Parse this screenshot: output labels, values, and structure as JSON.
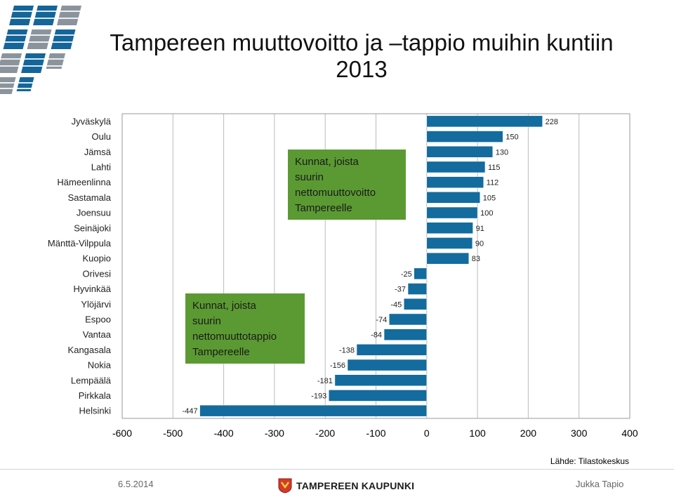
{
  "title": "Tampereen muuttovoitto ja –tappio muihin kuntiin 2013",
  "source": "Lähde: Tilastokeskus",
  "footer": {
    "date": "6.5.2014",
    "author": "Jukka Tapio",
    "org_name": "TAMPEREEN KAUPUNKI"
  },
  "annotations": {
    "gain_box": [
      "Kunnat, joista",
      "suurin",
      "nettomuuttovoitto",
      "Tampereelle"
    ],
    "loss_box": [
      "Kunnat, joista",
      "suurin",
      "nettomuuttotappio",
      "Tampereelle"
    ],
    "box_color": "#5b9a33"
  },
  "colors": {
    "bar": "#136b9e",
    "bar_edge": "#ffffff",
    "grid": "#bbbbbb",
    "frame": "#999999"
  },
  "chart_data": {
    "type": "bar",
    "orientation": "horizontal",
    "categories": [
      "Jyväskylä",
      "Oulu",
      "Jämsä",
      "Lahti",
      "Hämeenlinna",
      "Sastamala",
      "Joensuu",
      "Seinäjoki",
      "Mänttä-Vilppula",
      "Kuopio",
      "Orivesi",
      "Hyvinkää",
      "Ylöjärvi",
      "Espoo",
      "Vantaa",
      "Kangasala",
      "Nokia",
      "Lempäälä",
      "Pirkkala",
      "Helsinki"
    ],
    "values": [
      228,
      150,
      130,
      115,
      112,
      105,
      100,
      91,
      90,
      83,
      -25,
      -37,
      -45,
      -74,
      -84,
      -138,
      -156,
      -181,
      -193,
      -447
    ],
    "xlim": [
      -600,
      400
    ],
    "xticks": [
      -600,
      -500,
      -400,
      -300,
      -200,
      -100,
      0,
      100,
      200,
      300,
      400
    ],
    "grid": "vertical",
    "legend": "none"
  }
}
